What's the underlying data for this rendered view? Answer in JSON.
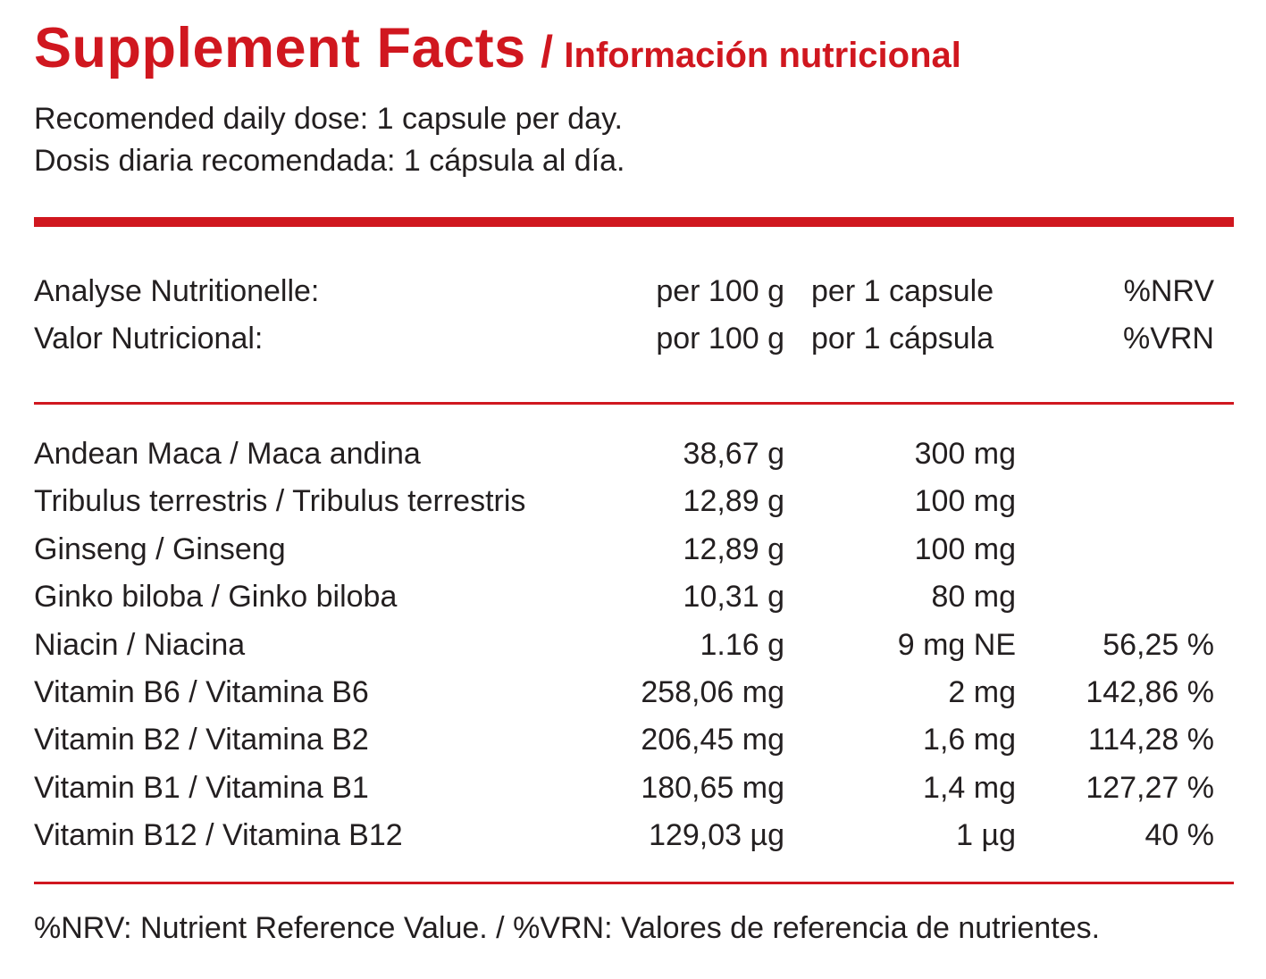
{
  "title": {
    "main": "Supplement Facts",
    "separator": "/",
    "sub": "Información nutricional",
    "color": "#d0171f"
  },
  "dose": {
    "en": "Recomended daily dose: 1 capsule per day.",
    "es": "Dosis diaria recomendada: 1 cápsula al día."
  },
  "header": {
    "rows": [
      {
        "name": "Analyse Nutritionelle:",
        "per100": "per 100 g",
        "percap": "per 1 capsule",
        "nrv": "%NRV"
      },
      {
        "name": "Valor Nutricional:",
        "per100": "por 100 g",
        "percap": "por 1 cápsula",
        "nrv": "%VRN"
      }
    ]
  },
  "nutrients": [
    {
      "name": "Andean Maca / Maca andina",
      "per100": "38,67 g",
      "percap": "300 mg",
      "nrv": ""
    },
    {
      "name": "Tribulus terrestris / Tribulus terrestris",
      "per100": "12,89 g",
      "percap": "100 mg",
      "nrv": ""
    },
    {
      "name": "Ginseng / Ginseng",
      "per100": "12,89 g",
      "percap": "100 mg",
      "nrv": ""
    },
    {
      "name": "Ginko biloba / Ginko biloba",
      "per100": "10,31 g",
      "percap": "80 mg",
      "nrv": ""
    },
    {
      "name": "Niacin / Niacina",
      "per100": "1.16 g",
      "percap": "9 mg NE",
      "nrv": "56,25 %"
    },
    {
      "name": "Vitamin B6 / Vitamina B6",
      "per100": "258,06 mg",
      "percap": "2 mg",
      "nrv": "142,86 %"
    },
    {
      "name": "Vitamin B2 / Vitamina B2",
      "per100": "206,45 mg",
      "percap": "1,6 mg",
      "nrv": "114,28 %"
    },
    {
      "name": "Vitamin B1 / Vitamina B1",
      "per100": "180,65 mg",
      "percap": "1,4 mg",
      "nrv": "127,27 %"
    },
    {
      "name": "Vitamin B12 / Vitamina B12",
      "per100": "129,03 µg",
      "percap": "1 µg",
      "nrv": "40 %"
    }
  ],
  "footnote": "%NRV: Nutrient Reference Value. / %VRN: Valores de referencia de nutrientes."
}
